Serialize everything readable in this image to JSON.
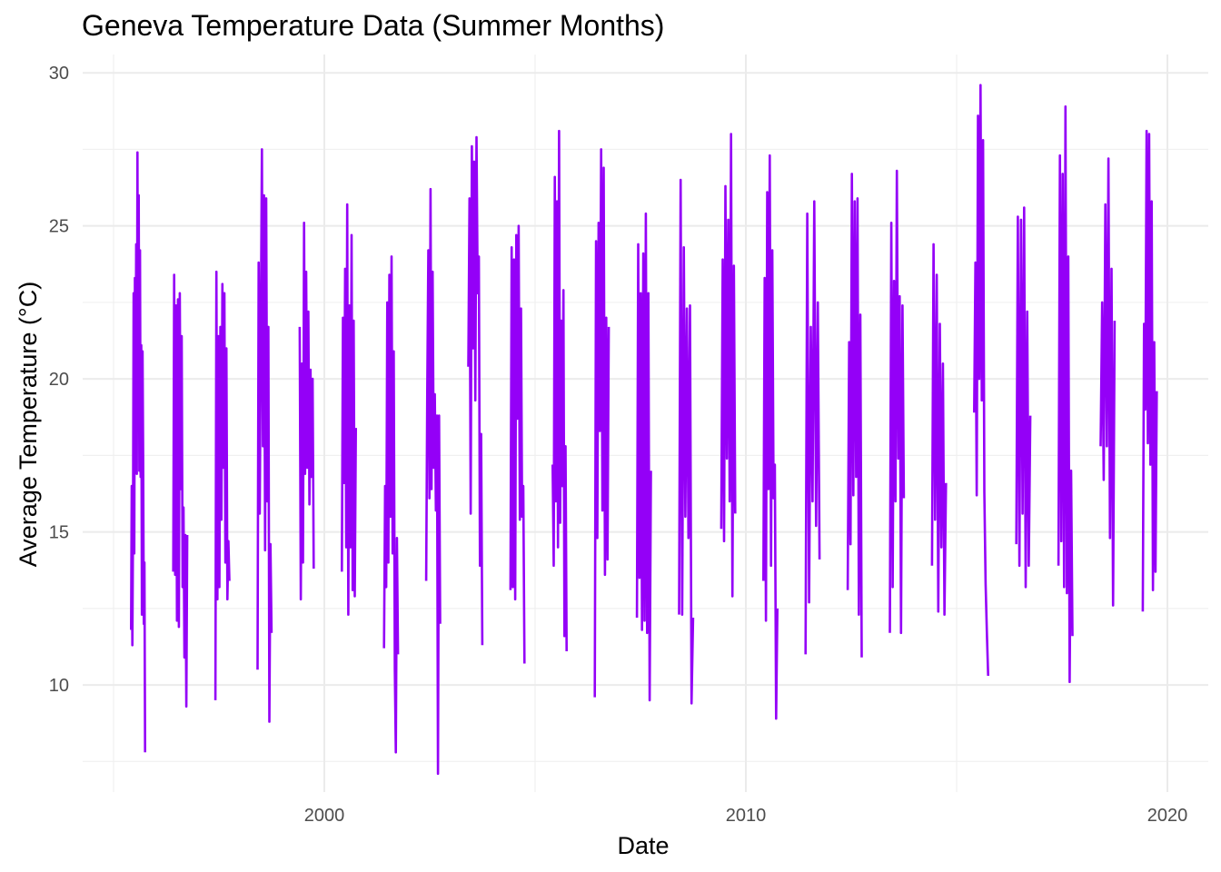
{
  "chart_data": {
    "type": "line",
    "title": "Geneva Temperature Data (Summer Months)",
    "xlabel": "Date",
    "ylabel": "Average Temperature (°C)",
    "x_axis_type": "date",
    "xlim": [
      "1995-01-01",
      "2020-01-01"
    ],
    "ylim": [
      6.5,
      30.6
    ],
    "x_ticks": [
      2000,
      2010,
      2020
    ],
    "y_ticks": [
      10,
      15,
      20,
      25,
      30
    ],
    "grid": true,
    "legend": "none",
    "line_color": "#9400f7",
    "season_months": "June–September",
    "series": [
      {
        "summers": [
          {
            "year": 1995,
            "values": [
              11.8,
              16.5,
              11.3,
              15.1,
              22.8,
              14.3,
              23.3,
              18.9,
              24.4,
              16.9,
              27.4,
              19.0,
              26.0,
              17.0,
              24.2,
              16.8,
              21.1,
              12.3,
              20.9,
              17.3,
              12.0,
              14.0,
              7.8
            ]
          },
          {
            "year": 1996,
            "values": [
              13.7,
              23.4,
              13.6,
              22.4,
              12.1,
              22.6,
              11.9,
              22.8,
              16.4,
              21.4,
              13.2,
              15.8,
              10.9,
              14.9,
              9.3,
              14.9
            ]
          },
          {
            "year": 1997,
            "values": [
              9.5,
              23.5,
              12.8,
              21.4,
              13.2,
              21.7,
              15.4,
              23.1,
              17.1,
              22.8,
              14.0,
              21.0,
              12.8,
              14.7,
              13.4
            ]
          },
          {
            "year": 1998,
            "values": [
              10.5,
              23.8,
              15.6,
              21.6,
              27.5,
              17.8,
              26.0,
              14.4,
              25.9,
              16.0,
              21.7,
              8.8,
              14.6,
              11.7
            ]
          },
          {
            "year": 1999,
            "values": [
              21.7,
              12.8,
              20.5,
              14.0,
              25.1,
              16.9,
              23.5,
              17.1,
              22.2,
              15.9,
              20.3,
              16.8,
              20.0,
              13.8
            ]
          },
          {
            "year": 2000,
            "values": [
              13.7,
              22.0,
              16.6,
              23.6,
              14.5,
              25.7,
              12.3,
              22.4,
              14.5,
              24.7,
              13.1,
              21.9,
              12.9,
              18.4
            ]
          },
          {
            "year": 2001,
            "values": [
              11.2,
              16.5,
              13.2,
              22.5,
              14.0,
              23.4,
              15.5,
              24.0,
              14.3,
              20.9,
              10.5,
              7.8,
              14.8,
              11.0
            ]
          },
          {
            "year": 2002,
            "values": [
              13.4,
              19.6,
              24.2,
              16.1,
              26.2,
              16.4,
              23.5,
              17.1,
              19.5,
              15.7,
              18.8,
              7.1,
              18.8,
              12.0
            ]
          },
          {
            "year": 2003,
            "values": [
              20.4,
              25.9,
              15.6,
              27.6,
              21.0,
              27.1,
              19.3,
              27.9,
              22.8,
              24.0,
              13.9,
              18.2,
              11.3
            ]
          },
          {
            "year": 2004,
            "values": [
              13.1,
              24.3,
              13.2,
              23.9,
              12.8,
              24.7,
              18.7,
              25.0,
              15.4,
              22.3,
              15.5,
              16.5,
              10.7
            ]
          },
          {
            "year": 2005,
            "values": [
              17.2,
              13.9,
              26.6,
              16.0,
              25.8,
              14.5,
              28.1,
              15.3,
              21.9,
              16.5,
              22.9,
              11.6,
              17.8,
              11.1
            ]
          },
          {
            "year": 2006,
            "values": [
              9.6,
              24.5,
              14.8,
              25.1,
              18.3,
              27.5,
              15.7,
              26.9,
              13.6,
              22.0,
              14.1,
              21.7
            ]
          },
          {
            "year": 2007,
            "values": [
              12.2,
              24.4,
              13.5,
              22.8,
              11.8,
              24.1,
              12.1,
              25.4,
              11.7,
              22.8,
              9.5,
              17.0
            ]
          },
          {
            "year": 2008,
            "values": [
              12.3,
              26.5,
              12.3,
              24.3,
              15.5,
              22.3,
              14.8,
              22.4,
              9.4,
              12.2
            ]
          },
          {
            "year": 2009,
            "values": [
              15.1,
              23.9,
              14.7,
              26.3,
              17.4,
              25.2,
              16.0,
              28.0,
              12.9,
              23.7,
              15.6
            ]
          },
          {
            "year": 2010,
            "values": [
              13.4,
              23.3,
              12.1,
              26.1,
              16.4,
              27.3,
              13.9,
              24.2,
              16.1,
              17.2,
              8.9,
              12.5
            ]
          },
          {
            "year": 2011,
            "values": [
              11.0,
              25.4,
              12.7,
              21.7,
              16.0,
              25.8,
              15.2,
              22.5,
              14.1
            ]
          },
          {
            "year": 2012,
            "values": [
              13.1,
              21.2,
              14.6,
              26.7,
              16.2,
              25.8,
              16.8,
              25.9,
              12.3,
              22.1,
              10.9
            ]
          },
          {
            "year": 2013,
            "values": [
              11.7,
              25.1,
              13.2,
              23.2,
              16.0,
              26.8,
              17.4,
              22.7,
              11.7,
              22.4,
              16.1
            ]
          },
          {
            "year": 2014,
            "values": [
              13.9,
              24.4,
              15.4,
              23.4,
              12.4,
              21.8,
              14.5,
              20.5,
              12.3,
              16.6
            ]
          },
          {
            "year": 2015,
            "values": [
              18.9,
              23.8,
              16.2,
              28.6,
              20.0,
              29.6,
              19.3,
              27.8,
              16.3,
              13.3,
              11.7,
              10.3
            ]
          },
          {
            "year": 2016,
            "values": [
              14.6,
              25.3,
              13.9,
              25.2,
              15.6,
              25.6,
              13.2,
              22.2,
              13.9,
              18.8
            ]
          },
          {
            "year": 2017,
            "values": [
              13.9,
              27.3,
              14.7,
              26.7,
              13.2,
              28.9,
              13.0,
              24.0,
              10.1,
              17.0,
              11.6
            ]
          },
          {
            "year": 2018,
            "values": [
              17.8,
              22.5,
              16.7,
              25.7,
              17.8,
              27.2,
              14.8,
              23.6,
              12.6,
              21.9
            ]
          },
          {
            "year": 2019,
            "values": [
              12.4,
              21.8,
              19.0,
              28.1,
              17.9,
              28.0,
              17.2,
              25.8,
              13.1,
              21.2,
              13.7,
              19.6
            ]
          }
        ]
      }
    ]
  }
}
